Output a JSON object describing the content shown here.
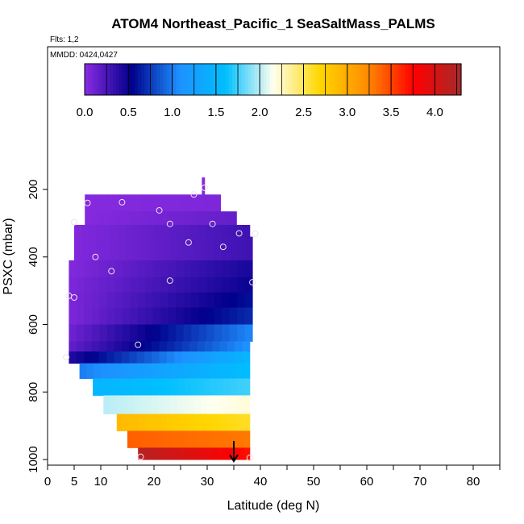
{
  "chart_data": {
    "type": "heatmap",
    "title": "ATOM4 Northeast_Pacific_1 SeaSaltMass_PALMS",
    "flights_label": "Flts: 1,2",
    "dates_label": "MMDD: 0424,0427",
    "xlabel": "Latitude (deg N)",
    "ylabel": "PSXC (mbar)",
    "xlim": [
      0,
      85
    ],
    "ylim": [
      1000,
      100
    ],
    "x_ticks": [
      0,
      5,
      10,
      20,
      30,
      40,
      50,
      60,
      70,
      80
    ],
    "x_minor_ticks": [
      15,
      25,
      35,
      45,
      55,
      65,
      75,
      85
    ],
    "y_ticks": [
      200,
      400,
      600,
      800,
      1000
    ],
    "colorbar": {
      "min": 0.0,
      "max": 4.3,
      "ticks": [
        0.0,
        0.5,
        1.0,
        1.5,
        2.0,
        2.5,
        3.0,
        3.5,
        4.0
      ],
      "tick_labels": [
        "0.0",
        "0.5",
        "1.0",
        "1.5",
        "2.0",
        "2.5",
        "3.0",
        "3.5",
        "4.0"
      ],
      "colors": [
        "#8a2be2",
        "#00008b",
        "#1e90ff",
        "#00bfff",
        "#fffff0",
        "#ffd700",
        "#ff8c00",
        "#ff0000",
        "#a52a2a"
      ]
    },
    "bands": [
      {
        "p_top": 165,
        "p_bot": 195,
        "x0": 29,
        "x1": 29.5,
        "v0": 0.02,
        "v1": 0.02
      },
      {
        "p_top": 195,
        "p_bot": 215,
        "x0": 29,
        "x1": 29.5,
        "v0": 0.03,
        "v1": 0.03
      },
      {
        "p_top": 215,
        "p_bot": 265,
        "x0": 7,
        "x1": 32.5,
        "v0": 0.02,
        "v1": 0.05
      },
      {
        "p_top": 265,
        "p_bot": 305,
        "x0": 7,
        "x1": 35.5,
        "v0": 0.02,
        "v1": 0.15
      },
      {
        "p_top": 305,
        "p_bot": 340,
        "x0": 5,
        "x1": 38,
        "v0": 0.03,
        "v1": 0.3
      },
      {
        "p_top": 340,
        "p_bot": 410,
        "x0": 5,
        "x1": 38.5,
        "v0": 0.03,
        "v1": 0.3
      },
      {
        "p_top": 410,
        "p_bot": 460,
        "x0": 4,
        "x1": 38.5,
        "v0": 0.03,
        "v1": 0.45
      },
      {
        "p_top": 460,
        "p_bot": 505,
        "x0": 4,
        "x1": 38.5,
        "v0": 0.05,
        "v1": 0.5
      },
      {
        "p_top": 505,
        "p_bot": 550,
        "x0": 4,
        "x1": 38.5,
        "v0": 0.05,
        "v1": 0.6
      },
      {
        "p_top": 550,
        "p_bot": 600,
        "x0": 4,
        "x1": 38.5,
        "v0": 0.05,
        "v1": 0.7
      },
      {
        "p_top": 600,
        "p_bot": 650,
        "x0": 4,
        "x1": 38.5,
        "v0": 0.1,
        "v1": 1.05
      },
      {
        "p_top": 650,
        "p_bot": 680,
        "x0": 4,
        "x1": 38,
        "v0": 0.15,
        "v1": 1.1
      },
      {
        "p_top": 680,
        "p_bot": 715,
        "x0": 4,
        "x1": 38,
        "v0": 0.4,
        "v1": 1.5
      },
      {
        "p_top": 715,
        "p_bot": 760,
        "x0": 6,
        "x1": 38,
        "v0": 1.0,
        "v1": 1.6
      },
      {
        "p_top": 760,
        "p_bot": 810,
        "x0": 8.5,
        "x1": 38,
        "v0": 1.5,
        "v1": 1.75
      },
      {
        "p_top": 810,
        "p_bot": 865,
        "x0": 10.5,
        "x1": 38,
        "v0": 2.0,
        "v1": 2.2
      },
      {
        "p_top": 865,
        "p_bot": 915,
        "x0": 13,
        "x1": 38,
        "v0": 2.9,
        "v1": 2.6
      },
      {
        "p_top": 915,
        "p_bot": 965,
        "x0": 15,
        "x1": 38,
        "v0": 3.4,
        "v1": 3.3
      },
      {
        "p_top": 965,
        "p_bot": 1000,
        "x0": 17,
        "x1": 38,
        "v0": 4.2,
        "v1": 3.7
      }
    ],
    "sample_points": [
      {
        "lat": 29.5,
        "p": 195
      },
      {
        "lat": 27.5,
        "p": 215
      },
      {
        "lat": 7.5,
        "p": 240
      },
      {
        "lat": 14,
        "p": 238
      },
      {
        "lat": 21,
        "p": 262
      },
      {
        "lat": 5,
        "p": 297
      },
      {
        "lat": 23,
        "p": 302
      },
      {
        "lat": 31,
        "p": 302
      },
      {
        "lat": 36,
        "p": 330
      },
      {
        "lat": 39,
        "p": 331
      },
      {
        "lat": 26.5,
        "p": 357
      },
      {
        "lat": 33,
        "p": 370
      },
      {
        "lat": 9,
        "p": 400
      },
      {
        "lat": 12,
        "p": 442
      },
      {
        "lat": 23,
        "p": 470
      },
      {
        "lat": 38.5,
        "p": 475
      },
      {
        "lat": 4,
        "p": 515
      },
      {
        "lat": 5,
        "p": 520
      },
      {
        "lat": 17,
        "p": 660
      },
      {
        "lat": 3.5,
        "p": 697
      },
      {
        "lat": 17.5,
        "p": 992
      },
      {
        "lat": 38,
        "p": 995
      }
    ],
    "arrow": {
      "lat": 35,
      "p_from": 945,
      "p_to": 1005
    }
  }
}
